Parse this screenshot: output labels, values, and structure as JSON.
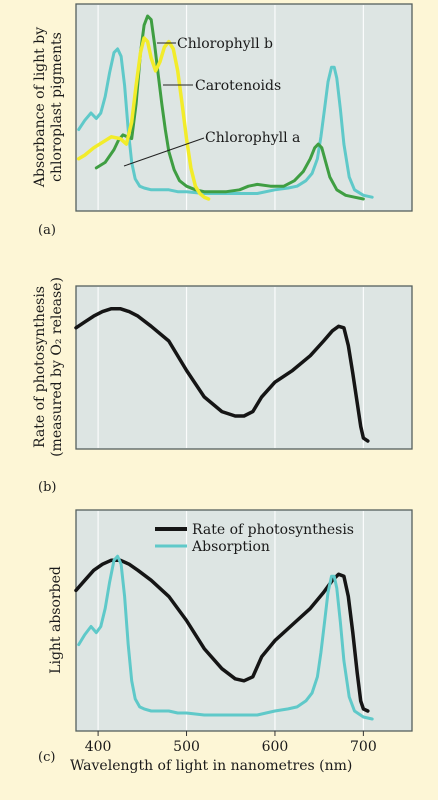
{
  "chart_data": [
    {
      "id": "a",
      "panel_label": "(a)",
      "type": "line",
      "ylabel": [
        "Absorbance of light by",
        "chloroplast pigments"
      ],
      "xlim": [
        375,
        755
      ],
      "ylim": [
        0,
        1
      ],
      "grid": "vertical",
      "series": [
        {
          "name": "Chlorophyll a",
          "color": "#5fc9c9",
          "x": [
            378,
            385,
            392,
            398,
            403,
            408,
            413,
            418,
            422,
            426,
            430,
            434,
            438,
            442,
            447,
            452,
            460,
            470,
            480,
            490,
            500,
            520,
            540,
            560,
            580,
            600,
            615,
            625,
            635,
            642,
            648,
            652,
            656,
            660,
            664,
            667,
            670,
            674,
            678,
            684,
            690,
            700,
            710
          ],
          "y": [
            0.38,
            0.43,
            0.47,
            0.44,
            0.47,
            0.56,
            0.69,
            0.8,
            0.82,
            0.78,
            0.62,
            0.38,
            0.2,
            0.11,
            0.07,
            0.06,
            0.05,
            0.05,
            0.05,
            0.04,
            0.04,
            0.03,
            0.03,
            0.03,
            0.03,
            0.05,
            0.06,
            0.07,
            0.1,
            0.14,
            0.22,
            0.34,
            0.49,
            0.64,
            0.72,
            0.72,
            0.66,
            0.49,
            0.3,
            0.12,
            0.05,
            0.02,
            0.01
          ]
        },
        {
          "name": "Chlorophyll b",
          "color": "#3f9e42",
          "x": [
            398,
            408,
            418,
            423,
            428,
            433,
            438,
            443,
            448,
            452,
            456,
            460,
            464,
            468,
            472,
            476,
            480,
            486,
            492,
            500,
            510,
            520,
            530,
            545,
            560,
            570,
            580,
            595,
            610,
            622,
            632,
            640,
            645,
            649,
            653,
            657,
            662,
            670,
            680,
            690,
            700
          ],
          "y": [
            0.17,
            0.2,
            0.27,
            0.32,
            0.35,
            0.34,
            0.33,
            0.52,
            0.8,
            0.95,
            1.0,
            0.98,
            0.84,
            0.68,
            0.52,
            0.38,
            0.26,
            0.16,
            0.1,
            0.07,
            0.05,
            0.04,
            0.04,
            0.04,
            0.05,
            0.07,
            0.08,
            0.07,
            0.07,
            0.1,
            0.15,
            0.22,
            0.28,
            0.3,
            0.28,
            0.21,
            0.12,
            0.05,
            0.02,
            0.01,
            0.0
          ]
        },
        {
          "name": "Carotenoids",
          "color": "#f2ec2a",
          "x": [
            378,
            385,
            395,
            405,
            415,
            425,
            432,
            438,
            443,
            448,
            452,
            456,
            460,
            465,
            470,
            475,
            480,
            485,
            490,
            495,
            500,
            505,
            510,
            515,
            520,
            525
          ],
          "y": [
            0.22,
            0.24,
            0.28,
            0.31,
            0.34,
            0.33,
            0.3,
            0.42,
            0.62,
            0.8,
            0.88,
            0.86,
            0.77,
            0.7,
            0.75,
            0.83,
            0.86,
            0.82,
            0.7,
            0.52,
            0.33,
            0.17,
            0.07,
            0.03,
            0.01,
            0.0
          ]
        }
      ],
      "annotations": [
        {
          "text": "Chlorophyll b",
          "series": "Chlorophyll b"
        },
        {
          "text": "Carotenoids",
          "series": "Carotenoids"
        },
        {
          "text": "Chlorophyll a",
          "series": "Chlorophyll a"
        }
      ]
    },
    {
      "id": "b",
      "panel_label": "(b)",
      "type": "line",
      "ylabel": [
        "Rate of photosynthesis",
        "(measured by O₂ release)"
      ],
      "xlim": [
        375,
        755
      ],
      "ylim": [
        0,
        1
      ],
      "grid": "vertical",
      "series": [
        {
          "name": "Rate of photosynthesis",
          "color": "#151515",
          "x": [
            375,
            385,
            395,
            405,
            415,
            425,
            435,
            445,
            460,
            480,
            500,
            520,
            540,
            555,
            565,
            575,
            585,
            600,
            620,
            640,
            655,
            665,
            672,
            678,
            683,
            688,
            693,
            697,
            700,
            705
          ],
          "y": [
            0.77,
            0.81,
            0.85,
            0.88,
            0.9,
            0.9,
            0.88,
            0.85,
            0.78,
            0.68,
            0.48,
            0.3,
            0.2,
            0.17,
            0.17,
            0.2,
            0.3,
            0.4,
            0.48,
            0.58,
            0.68,
            0.75,
            0.78,
            0.77,
            0.65,
            0.46,
            0.26,
            0.1,
            0.02,
            0.0
          ]
        }
      ]
    },
    {
      "id": "c",
      "panel_label": "(c)",
      "type": "line",
      "ylabel": [
        "Light absorbed"
      ],
      "xlabel": "Wavelength of light in nanometres (nm)",
      "xlim": [
        375,
        755
      ],
      "ylim": [
        0,
        1
      ],
      "xticks": [
        400,
        500,
        600,
        700
      ],
      "grid": "vertical",
      "legend": "top-right",
      "series": [
        {
          "name": "Rate of photosynthesis",
          "color": "#151515",
          "x": [
            375,
            385,
            395,
            405,
            415,
            425,
            435,
            445,
            460,
            480,
            500,
            520,
            540,
            555,
            565,
            575,
            585,
            600,
            620,
            640,
            655,
            665,
            672,
            678,
            683,
            688,
            693,
            697,
            700,
            705
          ],
          "y": [
            0.65,
            0.7,
            0.75,
            0.78,
            0.8,
            0.8,
            0.78,
            0.75,
            0.7,
            0.62,
            0.5,
            0.36,
            0.26,
            0.21,
            0.2,
            0.22,
            0.32,
            0.4,
            0.48,
            0.56,
            0.64,
            0.7,
            0.73,
            0.72,
            0.62,
            0.44,
            0.24,
            0.1,
            0.06,
            0.05
          ]
        },
        {
          "name": "Absorption",
          "color": "#5fc9c9",
          "x": [
            378,
            385,
            392,
            398,
            403,
            408,
            413,
            418,
            422,
            426,
            430,
            434,
            438,
            442,
            447,
            452,
            460,
            470,
            480,
            490,
            500,
            520,
            540,
            560,
            580,
            600,
            615,
            625,
            635,
            642,
            648,
            652,
            656,
            660,
            664,
            667,
            670,
            674,
            678,
            684,
            690,
            700,
            710
          ],
          "y": [
            0.38,
            0.43,
            0.47,
            0.44,
            0.47,
            0.56,
            0.69,
            0.8,
            0.82,
            0.78,
            0.62,
            0.38,
            0.2,
            0.11,
            0.07,
            0.06,
            0.05,
            0.05,
            0.05,
            0.04,
            0.04,
            0.03,
            0.03,
            0.03,
            0.03,
            0.05,
            0.06,
            0.07,
            0.1,
            0.14,
            0.22,
            0.34,
            0.49,
            0.64,
            0.72,
            0.72,
            0.66,
            0.49,
            0.3,
            0.12,
            0.05,
            0.02,
            0.01
          ]
        }
      ]
    }
  ]
}
